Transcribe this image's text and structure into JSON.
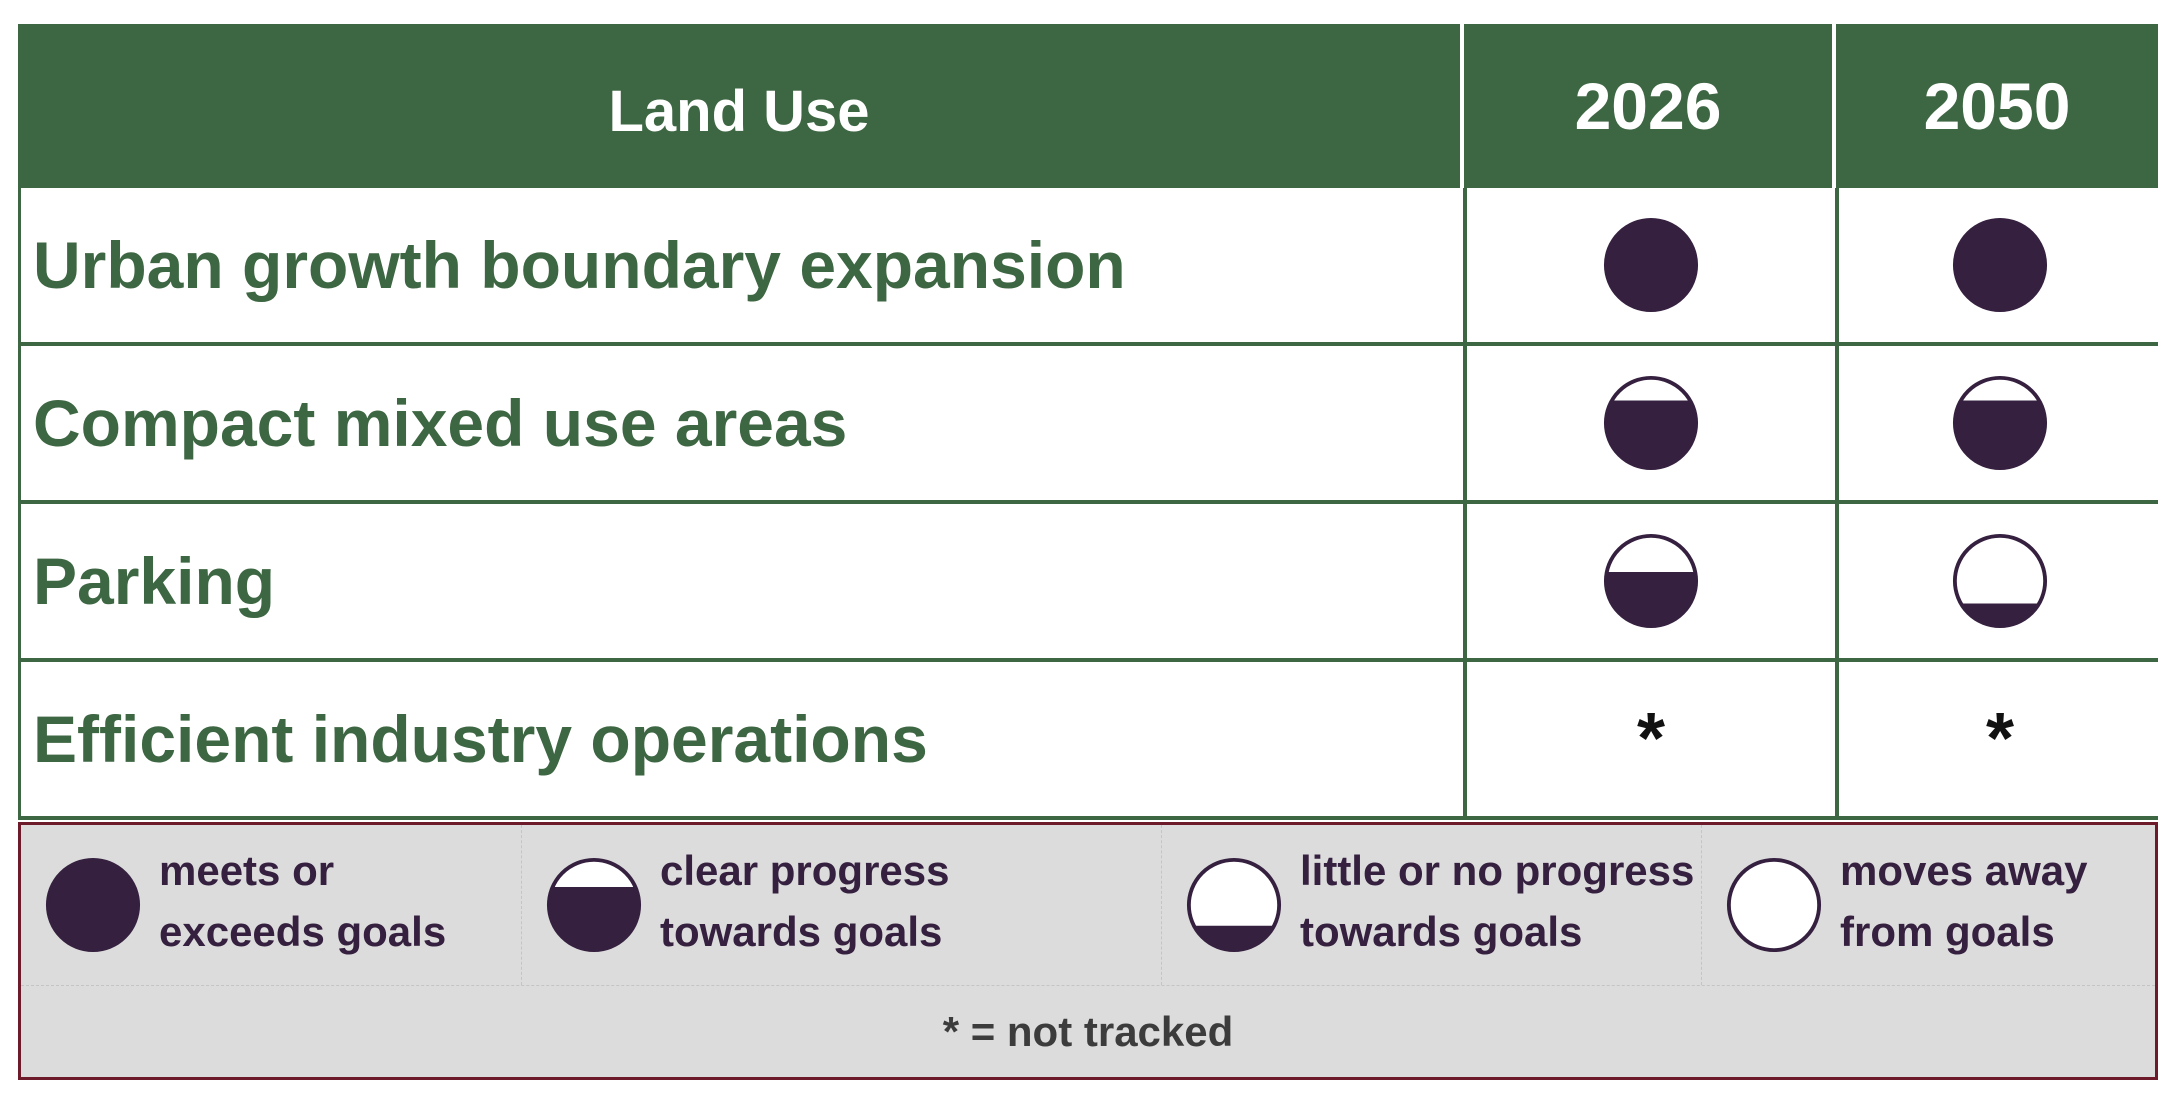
{
  "table": {
    "header": {
      "title": "Land Use",
      "years": [
        "2026",
        "2050"
      ]
    },
    "rows": [
      {
        "label": "Urban growth boundary expansion",
        "ratings": [
          1.0,
          1.0
        ]
      },
      {
        "label": "Compact mixed use areas",
        "ratings": [
          0.75,
          0.75
        ]
      },
      {
        "label": "Parking",
        "ratings": [
          0.6,
          0.25
        ]
      },
      {
        "label": "Efficient industry operations",
        "ratings": [
          "*",
          "*"
        ]
      }
    ]
  },
  "legend": {
    "items": [
      {
        "lines": [
          "meets or",
          "exceeds goals"
        ],
        "fill": 1.0,
        "icon": "filled-circle-icon"
      },
      {
        "lines": [
          "clear progress",
          "towards goals"
        ],
        "fill": 0.7,
        "icon": "three-quarter-circle-icon"
      },
      {
        "lines": [
          "little or no progress",
          "towards goals"
        ],
        "fill": 0.27,
        "icon": "quarter-circle-icon"
      },
      {
        "lines": [
          "moves away",
          "from goals"
        ],
        "fill": 0.0,
        "icon": "empty-circle-icon"
      }
    ],
    "footnote": "* = not tracked"
  },
  "colors": {
    "header_green": "#3d6642",
    "label_green": "#3d6642",
    "rating_fill": "#35203f",
    "legend_background": "#dcdcdc",
    "legend_border": "#6d1b2b"
  }
}
